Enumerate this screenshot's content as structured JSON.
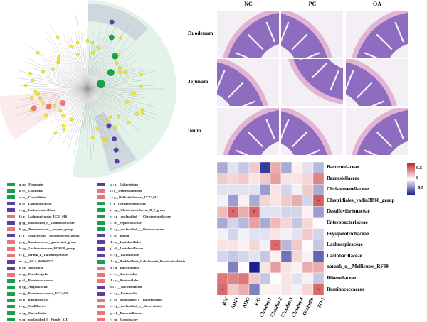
{
  "histology": {
    "columns": [
      "NC",
      "PC",
      "OA"
    ],
    "rows": [
      "Duodenum",
      "Jejunum",
      "Ileum"
    ]
  },
  "cladogram": {
    "group_colors": {
      "green": "#1aa04a",
      "purple": "#5b3f9e",
      "pink": "#e8777a",
      "node": "#f2e82a"
    }
  },
  "legend": [
    {
      "label": "a : p__Firmicutes",
      "color": "green"
    },
    {
      "label": "b : c__Clostridia",
      "color": "green"
    },
    {
      "label": "c : o__Clostridiales",
      "color": "green"
    },
    {
      "label": "d : f__Lachnospiraceae",
      "color": "purple"
    },
    {
      "label": "e : g__Lachnoclostridium",
      "color": "purple"
    },
    {
      "label": "f : g__Lachnospiraceae_UCG_010",
      "color": "pink"
    },
    {
      "label": "g : g__unclassified_f__Lachnospiraceae",
      "color": "purple"
    },
    {
      "label": "h : g__Ruminococcus__torques_group",
      "color": "pink"
    },
    {
      "label": "i : g__Eubacterium__oxidoreducens_group",
      "color": "purple"
    },
    {
      "label": "j : g__Ruminococcus__gauvreauii_group",
      "color": "pink"
    },
    {
      "label": "k : g__Lachnospiraceae_FCS020_group",
      "color": "pink"
    },
    {
      "label": "l : g__norank_f__Lachnospiraceae",
      "color": "pink"
    },
    {
      "label": "m : g__GCA_900066575",
      "color": "purple"
    },
    {
      "label": "n : g__Roseburia",
      "color": "purple"
    },
    {
      "label": "o : g__Eisenbergiella",
      "color": "pink"
    },
    {
      "label": "p : f__Ruminococcaceae",
      "color": "green"
    },
    {
      "label": "q : g__Angelakisella",
      "color": "green"
    },
    {
      "label": "r : g__Ruminococcaceae_UCG_010",
      "color": "green"
    },
    {
      "label": "s : g__Butyricicoccus",
      "color": "green"
    },
    {
      "label": "t : g__Oscillibacter",
      "color": "green"
    },
    {
      "label": "u : g__Harryflintia",
      "color": "green"
    },
    {
      "label": "v : g__unclassified_f__Family_XIII",
      "color": "green"
    },
    {
      "label": "w : g__Eubacterium",
      "color": "purple"
    },
    {
      "label": "x : f__Defluviitaleaceae",
      "color": "pink"
    },
    {
      "label": "y : g__Defluviitaleaceae_UCG_011",
      "color": "pink"
    },
    {
      "label": "z : f__Christensenellaceae",
      "color": "green"
    },
    {
      "label": "a1 : g__Christensenellaceae_R_7_group",
      "color": "green"
    },
    {
      "label": "b1 : g__unclassified_f__Christensenellaceae",
      "color": "green"
    },
    {
      "label": "c1 : f__Peptococcaceae",
      "color": "green"
    },
    {
      "label": "d1 : g__unclassified_f__Peptococcaceae",
      "color": "green"
    },
    {
      "label": "e1 : c__Bacilli",
      "color": "purple"
    },
    {
      "label": "f1 : o__Lactobacillales",
      "color": "purple"
    },
    {
      "label": "g1 : f__Lactobacillaceae",
      "color": "purple"
    },
    {
      "label": "h1 : g__Lactobacillus",
      "color": "purple"
    },
    {
      "label": "i1 : g__Burkholderia_Caballeronia_Paraburkholderia",
      "color": "green"
    },
    {
      "label": "j1 : p__Bacteroidetes",
      "color": "pink"
    },
    {
      "label": "k1 : c__Bacteroidia",
      "color": "pink"
    },
    {
      "label": "l1 : o__Bacteroidales",
      "color": "pink"
    },
    {
      "label": "m1 : f__Bacteroidaceae",
      "color": "purple"
    },
    {
      "label": "n1 : g__Bacteroides",
      "color": "purple"
    },
    {
      "label": "o1 : f__unclassified_o__Bacteroidales",
      "color": "pink"
    },
    {
      "label": "p1 : g__unclassified_o__Bacteroidales",
      "color": "pink"
    },
    {
      "label": "q1 : f__Barnesiellaceae",
      "color": "pink"
    },
    {
      "label": "r1 : g__Coprobacter",
      "color": "pink"
    }
  ],
  "chart_data": {
    "type": "heatmap",
    "columns": [
      "BW",
      "ADFI",
      "ADG",
      "F/G",
      "Claudin-1",
      "Claudin-2",
      "Claudin-3",
      "Claudin-4",
      "Occludin",
      "ZO-1"
    ],
    "rows": [
      "Bacteroidaceae",
      "Barnesiellaceae",
      "Christensenellaceae",
      "Clostridiales_vadinBB60_group",
      "Desulfovibrionaceae",
      "Enterobacteriaceae",
      "Erysipelotrichaceae",
      "Lachnospiraceae",
      "Lactobacillaceae",
      "norank_o__Mollicutes_RF39",
      "Rikenellaceae",
      "Ruminococcaceae"
    ],
    "values": [
      [
        -0.3,
        -0.1,
        -0.2,
        0.2,
        -0.7,
        0.3,
        -0.3,
        0.05,
        -0.1,
        -0.25
      ],
      [
        0.2,
        0.15,
        0.2,
        0.1,
        0.2,
        0.35,
        0.1,
        0.1,
        0.15,
        0.45
      ],
      [
        -0.1,
        -0.1,
        -0.1,
        -0.1,
        -0.35,
        0.1,
        -0.15,
        -0.05,
        0.2,
        -0.3
      ],
      [
        -0.05,
        -0.35,
        0.05,
        -0.3,
        0.15,
        0.1,
        0.2,
        0.3,
        -0.15,
        0.6
      ],
      [
        0.25,
        0.55,
        0.3,
        0.55,
        -0.1,
        -0.1,
        -0.15,
        -0.15,
        0.05,
        -0.35
      ],
      [
        -0.3,
        -0.15,
        -0.25,
        0.35,
        -0.3,
        0.25,
        0.15,
        -0.2,
        0.15,
        0.02
      ],
      [
        -0.05,
        -0.15,
        -0.05,
        -0.1,
        -0.1,
        0.1,
        -0.05,
        -0.1,
        0.2,
        -0.15
      ],
      [
        0.1,
        0.1,
        0.05,
        0.15,
        -0.05,
        0.55,
        -0.25,
        0.2,
        0.02,
        -0.2
      ],
      [
        -0.15,
        -0.2,
        -0.15,
        -0.1,
        -0.2,
        0.05,
        -0.5,
        0.15,
        0.05,
        -0.55
      ],
      [
        0,
        -0.45,
        0,
        -0.8,
        0.1,
        0.35,
        0.1,
        0.05,
        0.3,
        0.3
      ],
      [
        0.5,
        0.45,
        0.5,
        0.2,
        -0.2,
        0,
        0.1,
        -0.1,
        -0.05,
        -0.2
      ],
      [
        0.55,
        0.2,
        0.3,
        -0.45,
        0.05,
        0.05,
        0.1,
        -0.05,
        0.15,
        0.55
      ]
    ],
    "significance": [
      [
        "",
        "",
        "",
        "",
        "*",
        "",
        "",
        "",
        "",
        ""
      ],
      [
        "",
        "",
        "",
        "",
        "",
        "",
        "",
        "",
        "",
        ""
      ],
      [
        "",
        "",
        "",
        "",
        "",
        "",
        "",
        "",
        "",
        ""
      ],
      [
        "",
        "",
        "",
        "",
        "",
        "",
        "",
        "",
        "",
        "*"
      ],
      [
        "",
        "*",
        "",
        "*",
        "",
        "",
        "",
        "",
        "",
        ""
      ],
      [
        "",
        "",
        "",
        "",
        "",
        "",
        "",
        "",
        "",
        ""
      ],
      [
        "",
        "",
        "",
        "",
        "",
        "",
        "",
        "",
        "",
        ""
      ],
      [
        "",
        "",
        "",
        "",
        "",
        "*",
        "",
        "",
        "",
        ""
      ],
      [
        "",
        "",
        "",
        "",
        "",
        "",
        "",
        "",
        "",
        ""
      ],
      [
        "",
        "",
        "",
        "**",
        "",
        "",
        "",
        "",
        "",
        ""
      ],
      [
        "",
        "",
        "",
        "",
        "",
        "",
        "",
        "",
        "",
        ""
      ],
      [
        "*",
        "",
        "",
        "",
        "",
        "",
        "",
        "",
        "",
        "*"
      ]
    ],
    "colorbar": {
      "ticks": [
        "0.5",
        "0",
        "-0.5"
      ],
      "range": [
        -0.8,
        0.8
      ],
      "low": "#1a1f8f",
      "mid": "#ffffff",
      "high": "#c8252a"
    }
  }
}
